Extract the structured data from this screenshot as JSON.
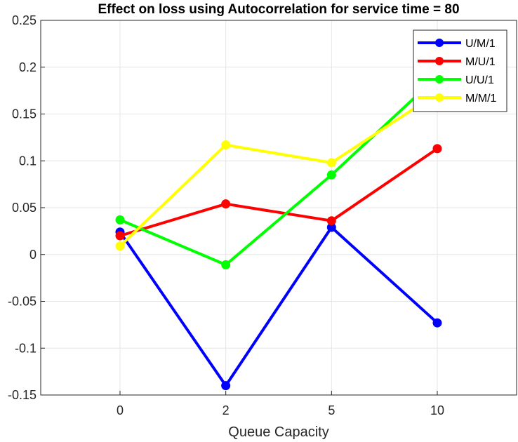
{
  "chart_data": {
    "type": "line",
    "title": "Effect on loss using Autocorrelation for service time = 80",
    "xlabel": "Queue Capacity",
    "ylabel": "",
    "categories": [
      "0",
      "2",
      "5",
      "10"
    ],
    "ylim": [
      -0.15,
      0.25
    ],
    "yticks": [
      -0.15,
      -0.1,
      -0.05,
      0,
      0.05,
      0.1,
      0.15,
      0.2,
      0.25
    ],
    "ytick_labels": [
      "-0.15",
      "-0.1",
      "-0.05",
      "0",
      "0.05",
      "0.1",
      "0.15",
      "0.2",
      "0.25"
    ],
    "grid": true,
    "legend_position": "top-right",
    "series": [
      {
        "name": "U/M/1",
        "color": "#0000ff",
        "values": [
          0.024,
          -0.14,
          0.029,
          -0.073
        ]
      },
      {
        "name": "M/U/1",
        "color": "#ff0000",
        "values": [
          0.02,
          0.054,
          0.036,
          0.113
        ]
      },
      {
        "name": "U/U/1",
        "color": "#00ff00",
        "values": [
          0.037,
          -0.011,
          0.085,
          0.19
        ]
      },
      {
        "name": "M/M/1",
        "color": "#ffff00",
        "values": [
          0.009,
          0.117,
          0.098,
          0.172
        ]
      }
    ]
  }
}
